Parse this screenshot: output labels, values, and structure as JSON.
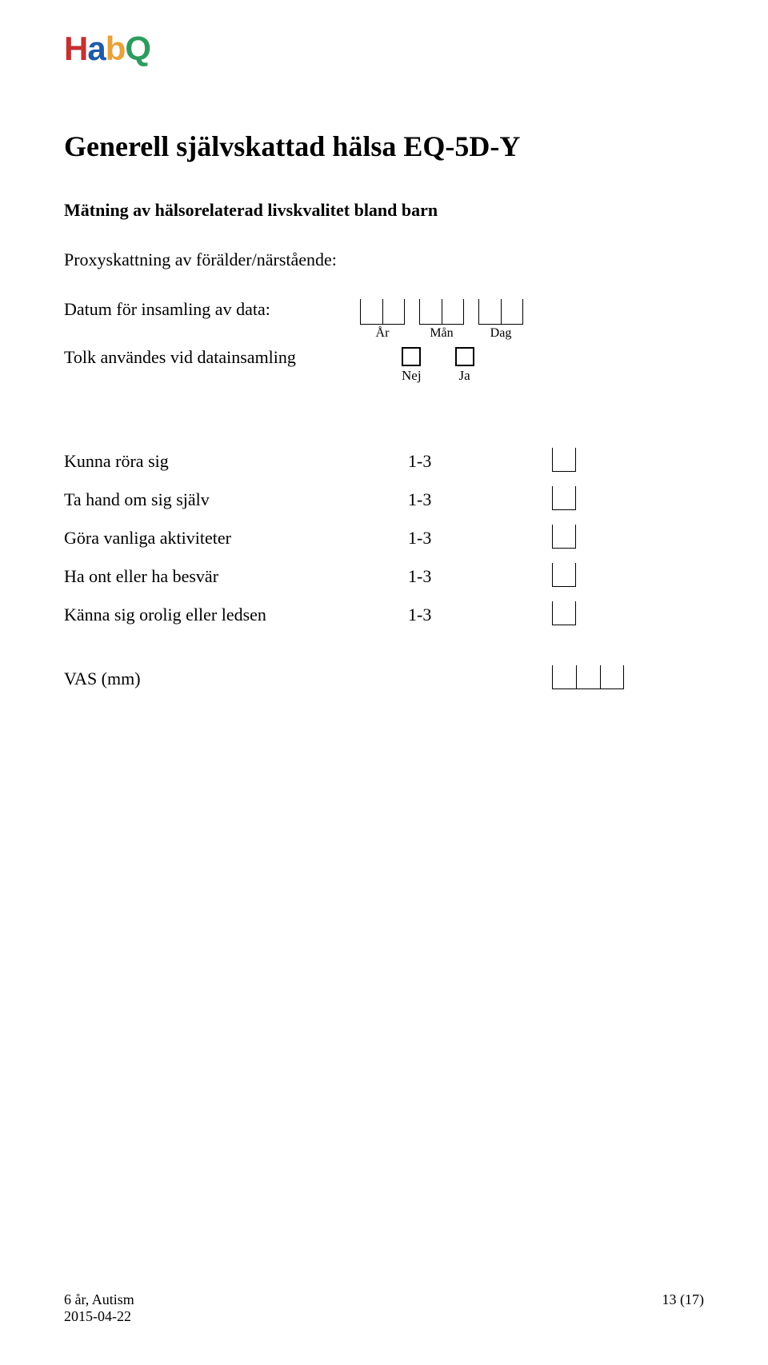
{
  "logo": {
    "h1": "H",
    "a": "a",
    "b": "b",
    "q": "Q",
    "colors": {
      "h": "#c53030",
      "a": "#1e5aa8",
      "b": "#e8a23a",
      "q": "#2d9b5e"
    }
  },
  "title": "Generell självskattad hälsa EQ-5D-Y",
  "subtitle": "Mätning av hälsorelaterad livskvalitet bland barn",
  "proxy_line": "Proxyskattning av förälder/närstående:",
  "date_label": "Datum för insamling av data:",
  "date_parts": {
    "year_label": "År",
    "month_label": "Mån",
    "day_label": "Dag",
    "year_cells": 2,
    "month_cells": 2,
    "day_cells": 2
  },
  "interpreter_label": "Tolk användes vid datainsamling",
  "yesno": {
    "no": "Nej",
    "yes": "Ja"
  },
  "items": [
    {
      "label": "Kunna röra sig",
      "range": "1-3"
    },
    {
      "label": "Ta hand om sig själv",
      "range": "1-3"
    },
    {
      "label": "Göra vanliga aktiviteter",
      "range": "1-3"
    },
    {
      "label": "Ha ont eller ha besvär",
      "range": "1-3"
    },
    {
      "label": "Känna sig orolig eller ledsen",
      "range": "1-3"
    }
  ],
  "vas_label": "VAS (mm)",
  "vas_cells": 3,
  "footer": {
    "left1": "6 år, Autism",
    "left2": "2015-04-22",
    "right": "13 (17)"
  },
  "style": {
    "page_bg": "#ffffff",
    "text_color": "#000000",
    "title_fontsize": 36,
    "body_fontsize": 22,
    "label_fontsize": 16,
    "font_family": "Times New Roman"
  }
}
